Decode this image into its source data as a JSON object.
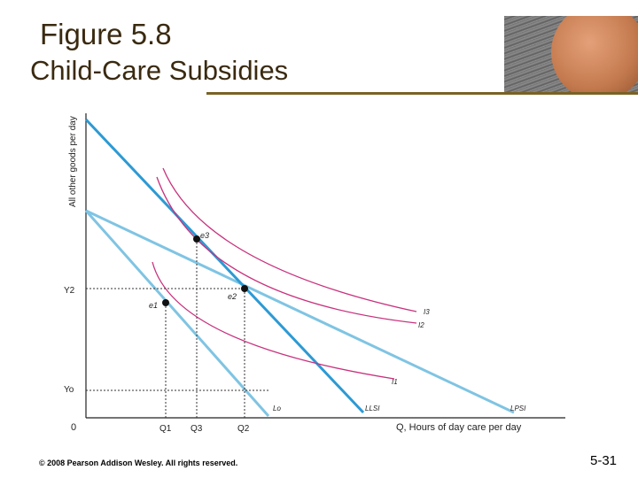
{
  "slide": {
    "title": "Figure 5.8",
    "subtitle": "Child-Care Subsidies",
    "footer": "© 2008 Pearson Addison Wesley. All rights reserved.",
    "page_number": "5-31"
  },
  "graph": {
    "ylabel": "All other goods per day",
    "xlabel": "Q, Hours of day care per day",
    "origin": "0",
    "y_ticks": [
      "Y2",
      "Yo"
    ],
    "x_ticks": [
      "Q1",
      "Q3",
      "Q2"
    ],
    "budget_lines": [
      "Lo",
      "LLSI",
      "LPSI"
    ],
    "indifference_curves": [
      "I1",
      "I2",
      "I3"
    ],
    "points": [
      "e1",
      "e2",
      "e3"
    ]
  }
}
